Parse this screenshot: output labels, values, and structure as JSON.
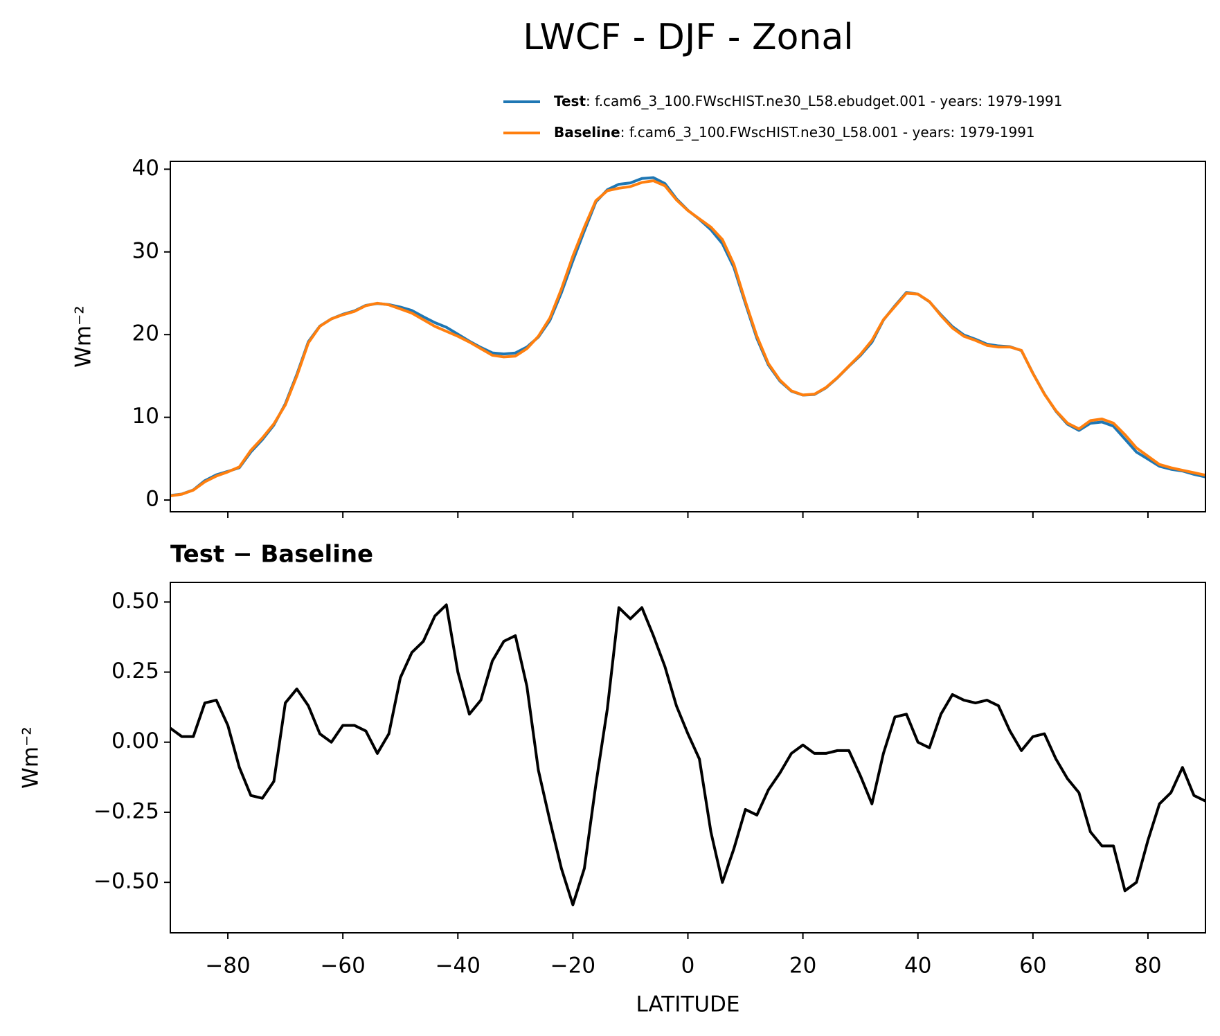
{
  "chart_data": [
    {
      "type": "line",
      "title": "LWCF - DJF - Zonal",
      "ylabel": "Wm⁻²",
      "xlim": [
        -90,
        90
      ],
      "ylim": [
        -1.42,
        40.95
      ],
      "xticks": [
        -80,
        -60,
        -40,
        -20,
        0,
        20,
        40,
        60,
        80
      ],
      "yticks": [
        0,
        10,
        20,
        30,
        40
      ],
      "x": [
        -90,
        -88,
        -86,
        -84,
        -82,
        -80,
        -78,
        -76,
        -74,
        -72,
        -70,
        -68,
        -66,
        -64,
        -62,
        -60,
        -58,
        -56,
        -54,
        -52,
        -50,
        -48,
        -46,
        -44,
        -42,
        -40,
        -38,
        -36,
        -34,
        -32,
        -30,
        -28,
        -26,
        -24,
        -22,
        -20,
        -18,
        -16,
        -14,
        -12,
        -10,
        -8,
        -6,
        -4,
        -2,
        0,
        2,
        4,
        6,
        8,
        10,
        12,
        14,
        16,
        18,
        20,
        22,
        24,
        26,
        28,
        30,
        32,
        34,
        36,
        38,
        40,
        42,
        44,
        46,
        48,
        50,
        52,
        54,
        56,
        58,
        60,
        62,
        64,
        66,
        68,
        70,
        72,
        74,
        76,
        78,
        80,
        82,
        84,
        86,
        88,
        90
      ],
      "series": [
        {
          "name": "Test",
          "description": ": f.cam6_3_100.FWscHIST.ne30_L58.ebudget.001 - years: 1979-1991",
          "color": "#1f77b4",
          "values": [
            0.55,
            0.72,
            1.22,
            2.34,
            3.05,
            3.46,
            3.91,
            5.81,
            7.3,
            9.06,
            11.64,
            15.19,
            19.13,
            21.03,
            21.9,
            22.46,
            22.86,
            23.54,
            23.76,
            23.63,
            23.33,
            22.92,
            22.16,
            21.45,
            20.89,
            20.05,
            19.2,
            18.45,
            17.79,
            17.66,
            17.78,
            18.5,
            19.7,
            21.72,
            25.05,
            28.92,
            32.55,
            36.05,
            37.52,
            38.18,
            38.34,
            38.88,
            38.98,
            38.27,
            36.43,
            35.03,
            33.94,
            32.68,
            31.0,
            28.12,
            23.76,
            19.54,
            16.33,
            14.39,
            13.16,
            12.69,
            12.76,
            13.56,
            14.77,
            16.17,
            17.48,
            19.08,
            21.76,
            23.49,
            25.1,
            24.9,
            23.98,
            22.4,
            20.97,
            19.95,
            19.44,
            18.85,
            18.63,
            18.54,
            18.07,
            15.32,
            12.83,
            10.74,
            9.17,
            8.42,
            9.28,
            9.43,
            8.93,
            7.37,
            5.8,
            4.95,
            4.08,
            3.72,
            3.51,
            3.11,
            2.79
          ]
        },
        {
          "name": "Baseline",
          "description": ": f.cam6_3_100.FWscHIST.ne30_L58.001 - years: 1979-1991",
          "color": "#ff7f0e",
          "values": [
            0.5,
            0.7,
            1.2,
            2.2,
            2.9,
            3.4,
            4.0,
            6.0,
            7.5,
            9.2,
            11.5,
            15.0,
            19.0,
            21.0,
            21.9,
            22.4,
            22.8,
            23.5,
            23.8,
            23.6,
            23.1,
            22.6,
            21.8,
            21.0,
            20.4,
            19.8,
            19.1,
            18.3,
            17.5,
            17.3,
            17.4,
            18.3,
            19.8,
            22.0,
            25.5,
            29.5,
            33.0,
            36.2,
            37.4,
            37.7,
            37.9,
            38.4,
            38.6,
            38.0,
            36.3,
            35.0,
            34.0,
            33.0,
            31.5,
            28.5,
            24.0,
            19.8,
            16.5,
            14.5,
            13.2,
            12.7,
            12.8,
            13.6,
            14.8,
            16.2,
            17.6,
            19.3,
            21.8,
            23.4,
            25.0,
            24.9,
            24.0,
            22.3,
            20.8,
            19.8,
            19.3,
            18.7,
            18.5,
            18.5,
            18.1,
            15.3,
            12.8,
            10.8,
            9.3,
            8.6,
            9.6,
            9.8,
            9.3,
            7.9,
            6.3,
            5.3,
            4.3,
            3.9,
            3.6,
            3.3,
            3.0
          ]
        }
      ]
    },
    {
      "type": "line",
      "title": "Test − Baseline",
      "ylabel": "Wm⁻²",
      "xlabel": "LATITUDE",
      "xlim": [
        -90,
        90
      ],
      "ylim": [
        -0.68,
        0.57
      ],
      "xticks": [
        {
          "value": -80,
          "label": "−80"
        },
        {
          "value": -60,
          "label": "−60"
        },
        {
          "value": -40,
          "label": "−40"
        },
        {
          "value": -20,
          "label": "−20"
        },
        0,
        20,
        40,
        60,
        80
      ],
      "yticks": [
        {
          "value": 0.5,
          "label": "0.50"
        },
        {
          "value": 0.25,
          "label": "0.25"
        },
        {
          "value": 0,
          "label": "0.00"
        },
        {
          "value": -0.25,
          "label": "−0.25"
        },
        {
          "value": -0.5,
          "label": "−0.50"
        }
      ],
      "x": [
        -90,
        -88,
        -86,
        -84,
        -82,
        -80,
        -78,
        -76,
        -74,
        -72,
        -70,
        -68,
        -66,
        -64,
        -62,
        -60,
        -58,
        -56,
        -54,
        -52,
        -50,
        -48,
        -46,
        -44,
        -42,
        -40,
        -38,
        -36,
        -34,
        -32,
        -30,
        -28,
        -26,
        -24,
        -22,
        -20,
        -18,
        -16,
        -14,
        -12,
        -10,
        -8,
        -6,
        -4,
        -2,
        0,
        2,
        4,
        6,
        8,
        10,
        12,
        14,
        16,
        18,
        20,
        22,
        24,
        26,
        28,
        30,
        32,
        34,
        36,
        38,
        40,
        42,
        44,
        46,
        48,
        50,
        52,
        54,
        56,
        58,
        60,
        62,
        64,
        66,
        68,
        70,
        72,
        74,
        76,
        78,
        80,
        82,
        84,
        86,
        88,
        90
      ],
      "series": [
        {
          "color": "#000000",
          "values": [
            0.05,
            0.02,
            0.02,
            0.14,
            0.15,
            0.06,
            -0.09,
            -0.19,
            -0.2,
            -0.14,
            0.14,
            0.19,
            0.13,
            0.03,
            0.0,
            0.06,
            0.06,
            0.04,
            -0.04,
            0.03,
            0.23,
            0.32,
            0.36,
            0.45,
            0.49,
            0.25,
            0.1,
            0.15,
            0.29,
            0.36,
            0.38,
            0.2,
            -0.1,
            -0.28,
            -0.45,
            -0.58,
            -0.45,
            -0.15,
            0.12,
            0.48,
            0.44,
            0.48,
            0.38,
            0.27,
            0.13,
            0.03,
            -0.06,
            -0.32,
            -0.5,
            -0.38,
            -0.24,
            -0.26,
            -0.17,
            -0.11,
            -0.04,
            -0.01,
            -0.04,
            -0.04,
            -0.03,
            -0.03,
            -0.12,
            -0.22,
            -0.04,
            0.09,
            0.1,
            0.0,
            -0.02,
            0.1,
            0.17,
            0.15,
            0.14,
            0.15,
            0.13,
            0.04,
            -0.03,
            0.02,
            0.03,
            -0.06,
            -0.13,
            -0.18,
            -0.32,
            -0.37,
            -0.37,
            -0.53,
            -0.5,
            -0.35,
            -0.22,
            -0.18,
            -0.09,
            -0.19,
            -0.21
          ]
        }
      ]
    }
  ]
}
